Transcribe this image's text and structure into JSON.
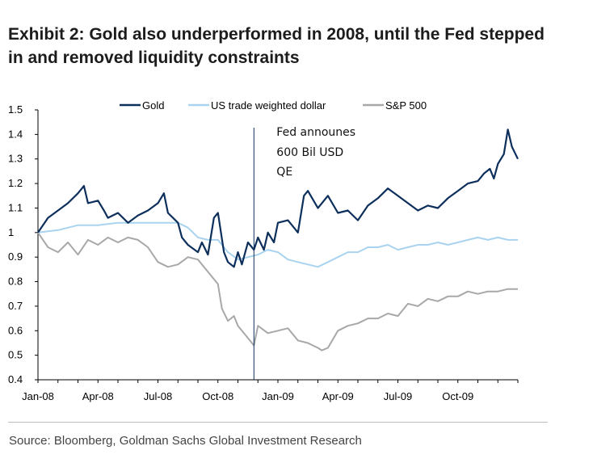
{
  "title_line1": "Exhibit 2: Gold also underperformed in 2008, until the Fed stepped",
  "title_line2": "in and removed liquidity constraints",
  "source": "Source: Bloomberg, Goldman Sachs Global Investment Research",
  "colors": {
    "gold": "#0d2f5c",
    "dollar": "#a9d3ef",
    "sp500": "#a8a8a8",
    "axis": "#000000",
    "marker": "#0d2f5c"
  },
  "chart_data": {
    "type": "line",
    "title": "Exhibit 2: Gold also underperformed in 2008, until the Fed stepped in and removed liquidity constraints",
    "xlabel": "",
    "ylabel": "",
    "ylim": [
      0.4,
      1.5
    ],
    "xlim": [
      0,
      24
    ],
    "yticks": [
      0.4,
      0.5,
      0.6,
      0.7,
      0.8,
      0.9,
      1,
      1.1,
      1.2,
      1.3,
      1.4,
      1.5
    ],
    "ytick_labels": [
      "0.4",
      "0.5",
      "0.6",
      "0.7",
      "0.8",
      "0.9",
      "1",
      "1.1",
      "1.2",
      "1.3",
      "1.4",
      "1.5"
    ],
    "xticks": [
      0,
      3,
      6,
      9,
      12,
      15,
      18,
      21
    ],
    "xtick_labels": [
      "Jan-08",
      "Apr-08",
      "Jul-08",
      "Oct-08",
      "Jan-09",
      "Apr-09",
      "Jul-09",
      "Oct-09"
    ],
    "legend_position": "top",
    "annotation": {
      "lines": [
        "Fed announes",
        "600 Bil USD",
        "QE"
      ],
      "x": 10.8
    },
    "series": [
      {
        "name": "Gold",
        "color_key": "gold",
        "x": [
          0,
          0.5,
          1,
          1.5,
          2,
          2.3,
          2.5,
          3,
          3.3,
          3.5,
          4,
          4.5,
          5,
          5.5,
          6,
          6.3,
          6.5,
          7,
          7.2,
          7.5,
          8,
          8.2,
          8.5,
          8.8,
          9,
          9.3,
          9.5,
          9.8,
          10,
          10.2,
          10.5,
          10.8,
          11,
          11.3,
          11.5,
          11.8,
          12,
          12.5,
          13,
          13.3,
          13.5,
          14,
          14.5,
          15,
          15.5,
          16,
          16.5,
          17,
          17.5,
          18,
          18.5,
          19,
          19.5,
          20,
          20.5,
          21,
          21.5,
          22,
          22.3,
          22.6,
          22.8,
          23,
          23.3,
          23.5,
          23.7,
          24
        ],
        "values": [
          1.0,
          1.06,
          1.09,
          1.12,
          1.16,
          1.19,
          1.12,
          1.13,
          1.09,
          1.06,
          1.08,
          1.04,
          1.07,
          1.09,
          1.12,
          1.16,
          1.08,
          1.04,
          0.98,
          0.95,
          0.92,
          0.96,
          0.91,
          1.06,
          1.08,
          0.92,
          0.88,
          0.86,
          0.92,
          0.87,
          0.96,
          0.93,
          0.98,
          0.93,
          1.0,
          0.96,
          1.04,
          1.05,
          1.0,
          1.15,
          1.17,
          1.1,
          1.15,
          1.08,
          1.09,
          1.05,
          1.11,
          1.14,
          1.18,
          1.15,
          1.12,
          1.09,
          1.11,
          1.1,
          1.14,
          1.17,
          1.2,
          1.21,
          1.24,
          1.26,
          1.22,
          1.28,
          1.32,
          1.42,
          1.35,
          1.3
        ]
      },
      {
        "name": "US trade weighted dollar",
        "color_key": "dollar",
        "x": [
          0,
          1,
          2,
          3,
          4,
          5,
          6,
          7,
          7.5,
          8,
          8.5,
          9,
          9.5,
          10,
          10.5,
          11,
          11.5,
          12,
          12.5,
          13,
          13.5,
          14,
          14.5,
          15,
          15.5,
          16,
          16.5,
          17,
          17.5,
          18,
          18.5,
          19,
          19.5,
          20,
          20.5,
          21,
          21.5,
          22,
          22.5,
          23,
          23.5,
          24
        ],
        "values": [
          1.0,
          1.01,
          1.03,
          1.03,
          1.04,
          1.04,
          1.04,
          1.04,
          1.02,
          0.98,
          0.97,
          0.97,
          0.92,
          0.89,
          0.9,
          0.91,
          0.93,
          0.92,
          0.89,
          0.88,
          0.87,
          0.86,
          0.88,
          0.9,
          0.92,
          0.92,
          0.94,
          0.94,
          0.95,
          0.93,
          0.94,
          0.95,
          0.95,
          0.96,
          0.95,
          0.96,
          0.97,
          0.98,
          0.97,
          0.98,
          0.97,
          0.97
        ]
      },
      {
        "name": "S&P 500",
        "color_key": "sp500",
        "x": [
          0,
          0.5,
          1,
          1.5,
          2,
          2.5,
          3,
          3.5,
          4,
          4.5,
          5,
          5.5,
          6,
          6.5,
          7,
          7.5,
          8,
          8.5,
          9,
          9.2,
          9.5,
          9.8,
          10,
          10.3,
          10.5,
          10.8,
          11,
          11.5,
          12,
          12.5,
          13,
          13.5,
          14,
          14.2,
          14.5,
          15,
          15.5,
          16,
          16.5,
          17,
          17.5,
          18,
          18.5,
          19,
          19.5,
          20,
          20.5,
          21,
          21.5,
          22,
          22.5,
          23,
          23.5,
          24
        ],
        "values": [
          1.0,
          0.94,
          0.92,
          0.96,
          0.91,
          0.97,
          0.95,
          0.98,
          0.96,
          0.98,
          0.97,
          0.94,
          0.88,
          0.86,
          0.87,
          0.9,
          0.89,
          0.84,
          0.79,
          0.69,
          0.64,
          0.66,
          0.62,
          0.59,
          0.57,
          0.54,
          0.62,
          0.59,
          0.6,
          0.61,
          0.56,
          0.55,
          0.53,
          0.52,
          0.53,
          0.6,
          0.62,
          0.63,
          0.65,
          0.65,
          0.67,
          0.66,
          0.71,
          0.7,
          0.73,
          0.72,
          0.74,
          0.74,
          0.76,
          0.75,
          0.76,
          0.76,
          0.77,
          0.77
        ]
      }
    ]
  }
}
